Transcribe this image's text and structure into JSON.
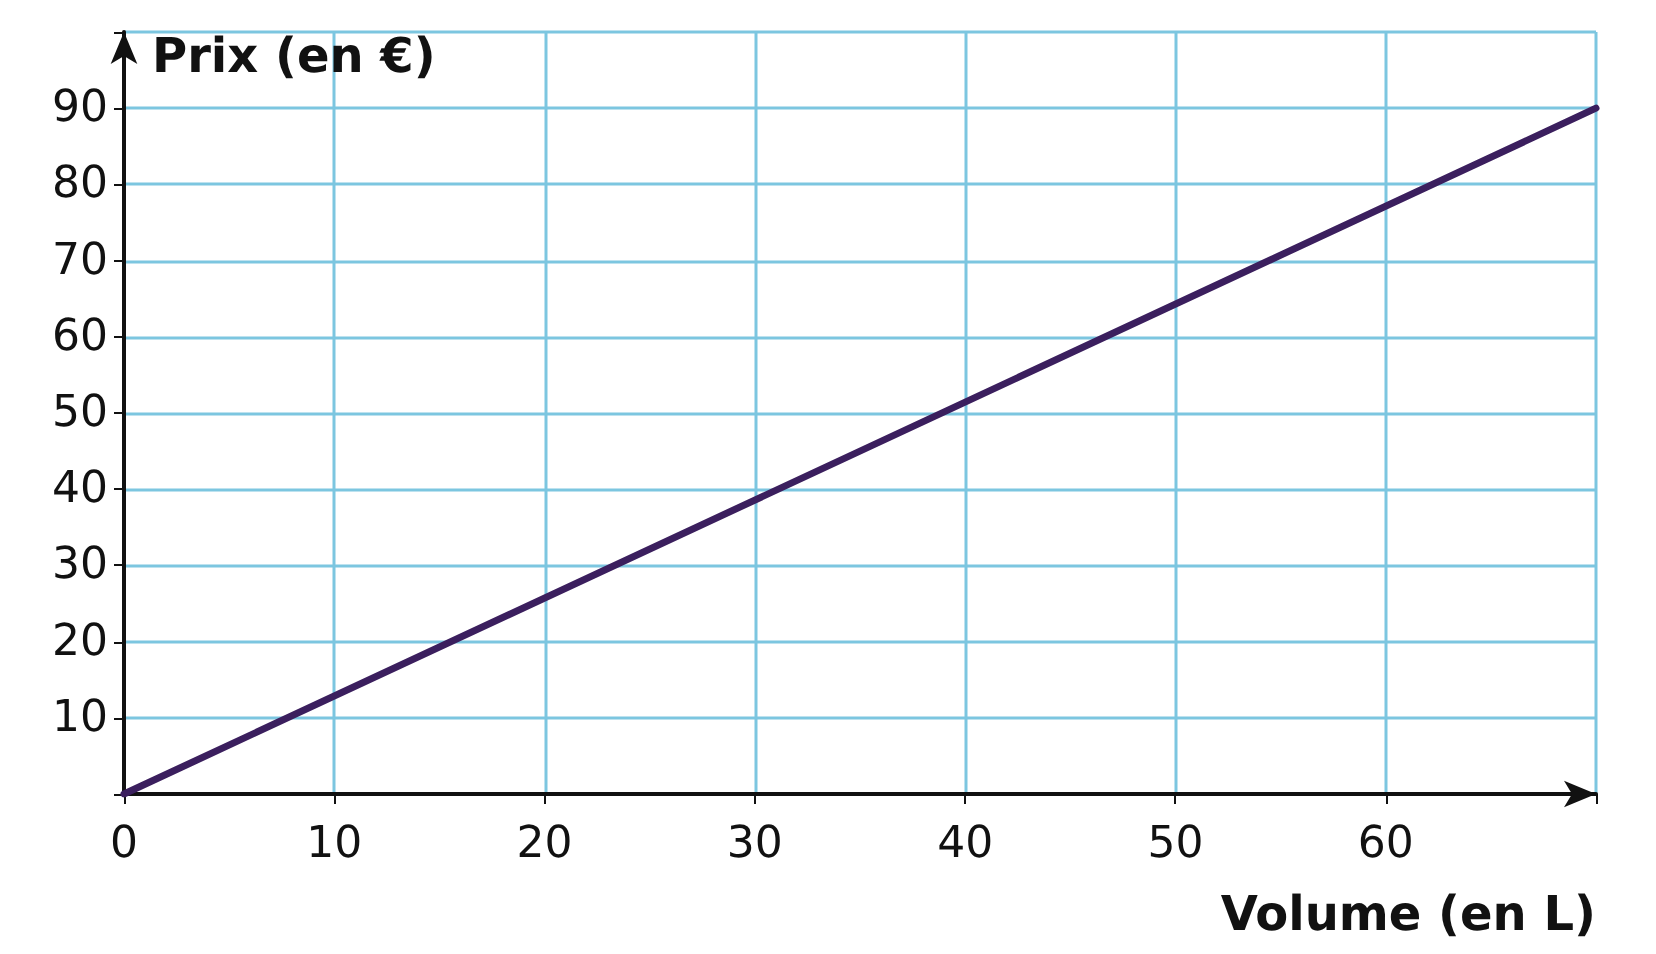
{
  "chart_data": {
    "type": "line",
    "xlabel": "Volume (en L)",
    "ylabel": "Prix (en €)",
    "x": [
      0,
      70
    ],
    "series": [
      {
        "color": "#3b1f5e",
        "values": [
          0,
          90
        ]
      }
    ],
    "xlim": [
      0,
      70
    ],
    "xticks": [
      0,
      10,
      20,
      30,
      40,
      50,
      60,
      {
        "value": 70,
        "label": null
      }
    ],
    "ylim": [
      0,
      100
    ],
    "yticks": [
      {
        "value": 0,
        "label": null
      },
      10,
      20,
      30,
      40,
      50,
      60,
      70,
      80,
      90,
      {
        "value": 100,
        "label": null
      }
    ],
    "grid": true,
    "marker": "none",
    "line_style": "solid"
  }
}
